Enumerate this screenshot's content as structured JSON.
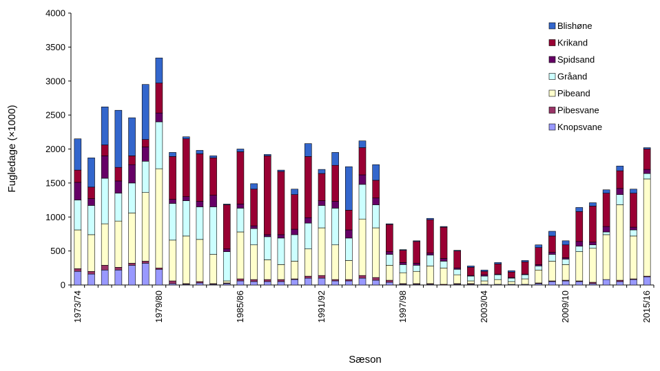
{
  "chart_data": {
    "type": "bar",
    "stacked": true,
    "xlabel": "Sæson",
    "ylabel": "Fugledage (×1000)",
    "ylim": [
      0,
      4000
    ],
    "yticks": [
      0,
      500,
      1000,
      1500,
      2000,
      2500,
      3000,
      3500,
      4000
    ],
    "xtick_labels": [
      {
        "index": 0,
        "label": "1973/74"
      },
      {
        "index": 6,
        "label": "1979/80"
      },
      {
        "index": 12,
        "label": "1985/86"
      },
      {
        "index": 18,
        "label": "1991/92"
      },
      {
        "index": 24,
        "label": "1997/98"
      },
      {
        "index": 30,
        "label": "2003/04"
      },
      {
        "index": 36,
        "label": "2009/10"
      },
      {
        "index": 42,
        "label": "2015/16"
      }
    ],
    "legend_position": "top-right",
    "categories": [
      "1973/74",
      "1974/75",
      "1975/76",
      "1976/77",
      "1977/78",
      "1978/79",
      "1979/80",
      "1980/81",
      "1981/82",
      "1982/83",
      "1983/84",
      "1984/85",
      "1985/86",
      "1986/87",
      "1987/88",
      "1988/89",
      "1989/90",
      "1990/91",
      "1991/92",
      "1992/93",
      "1993/94",
      "1994/95",
      "1995/96",
      "1996/97",
      "1997/98",
      "1998/99",
      "1999/00",
      "2000/01",
      "2001/02",
      "2002/03",
      "2003/04",
      "2004/05",
      "2005/06",
      "2006/07",
      "2007/08",
      "2008/09",
      "2009/10",
      "2010/11",
      "2011/12",
      "2012/13",
      "2013/14",
      "2014/15",
      "2015/16"
    ],
    "series": [
      {
        "name": "Knopsvane",
        "color": "#9999ff",
        "values": [
          200,
          160,
          220,
          220,
          290,
          320,
          230,
          20,
          10,
          30,
          10,
          20,
          60,
          50,
          50,
          50,
          80,
          100,
          100,
          60,
          60,
          100,
          70,
          40,
          10,
          10,
          10,
          0,
          10,
          10,
          10,
          10,
          10,
          10,
          20,
          50,
          60,
          50,
          20,
          80,
          50,
          80,
          120
        ]
      },
      {
        "name": "Pibesvane",
        "color": "#993366",
        "values": [
          40,
          40,
          70,
          40,
          30,
          30,
          20,
          40,
          10,
          20,
          10,
          10,
          30,
          30,
          30,
          30,
          10,
          30,
          40,
          20,
          20,
          40,
          40,
          30,
          10,
          10,
          10,
          10,
          10,
          10,
          0,
          0,
          0,
          0,
          10,
          10,
          10,
          10,
          20,
          0,
          20,
          10,
          10
        ]
      },
      {
        "name": "Pibeand",
        "color": "#ffffcc",
        "values": [
          570,
          540,
          610,
          680,
          740,
          1010,
          1460,
          600,
          700,
          620,
          430,
          30,
          690,
          510,
          290,
          220,
          260,
          400,
          700,
          510,
          280,
          830,
          730,
          220,
          160,
          180,
          260,
          240,
          130,
          40,
          50,
          70,
          40,
          80,
          190,
          290,
          230,
          430,
          500,
          660,
          1110,
          630,
          1430
        ]
      },
      {
        "name": "Gråand",
        "color": "#ccffff",
        "values": [
          440,
          430,
          670,
          410,
          440,
          460,
          690,
          540,
          520,
          480,
          700,
          430,
          350,
          240,
          340,
          390,
          390,
          380,
          330,
          540,
          330,
          510,
          340,
          160,
          120,
          90,
          160,
          100,
          80,
          70,
          70,
          70,
          50,
          60,
          60,
          100,
          80,
          80,
          50,
          40,
          150,
          90,
          80
        ]
      },
      {
        "name": "Spidsand",
        "color": "#660066",
        "values": [
          260,
          100,
          330,
          180,
          270,
          210,
          130,
          60,
          60,
          80,
          170,
          40,
          60,
          40,
          30,
          50,
          80,
          80,
          70,
          100,
          120,
          140,
          100,
          40,
          30,
          30,
          30,
          40,
          20,
          10,
          20,
          10,
          10,
          10,
          20,
          30,
          20,
          70,
          40,
          80,
          90,
          40,
          60
        ]
      },
      {
        "name": "Krikand",
        "color": "#990033",
        "values": [
          180,
          170,
          160,
          200,
          130,
          110,
          440,
          630,
          850,
          700,
          550,
          650,
          770,
          540,
          1160,
          930,
          510,
          900,
          400,
          530,
          290,
          400,
          260,
          400,
          180,
          320,
          490,
          460,
          250,
          120,
          50,
          150,
          80,
          180,
          250,
          240,
          190,
          440,
          530,
          490,
          260,
          500,
          300
        ]
      },
      {
        "name": "Blishøne",
        "color": "#3366cc",
        "values": [
          460,
          430,
          560,
          840,
          560,
          810,
          370,
          60,
          30,
          50,
          30,
          10,
          40,
          80,
          20,
          20,
          80,
          190,
          60,
          190,
          640,
          100,
          230,
          10,
          10,
          10,
          20,
          10,
          10,
          20,
          20,
          20,
          20,
          20,
          40,
          70,
          60,
          60,
          50,
          50,
          70,
          60,
          20
        ]
      }
    ]
  }
}
